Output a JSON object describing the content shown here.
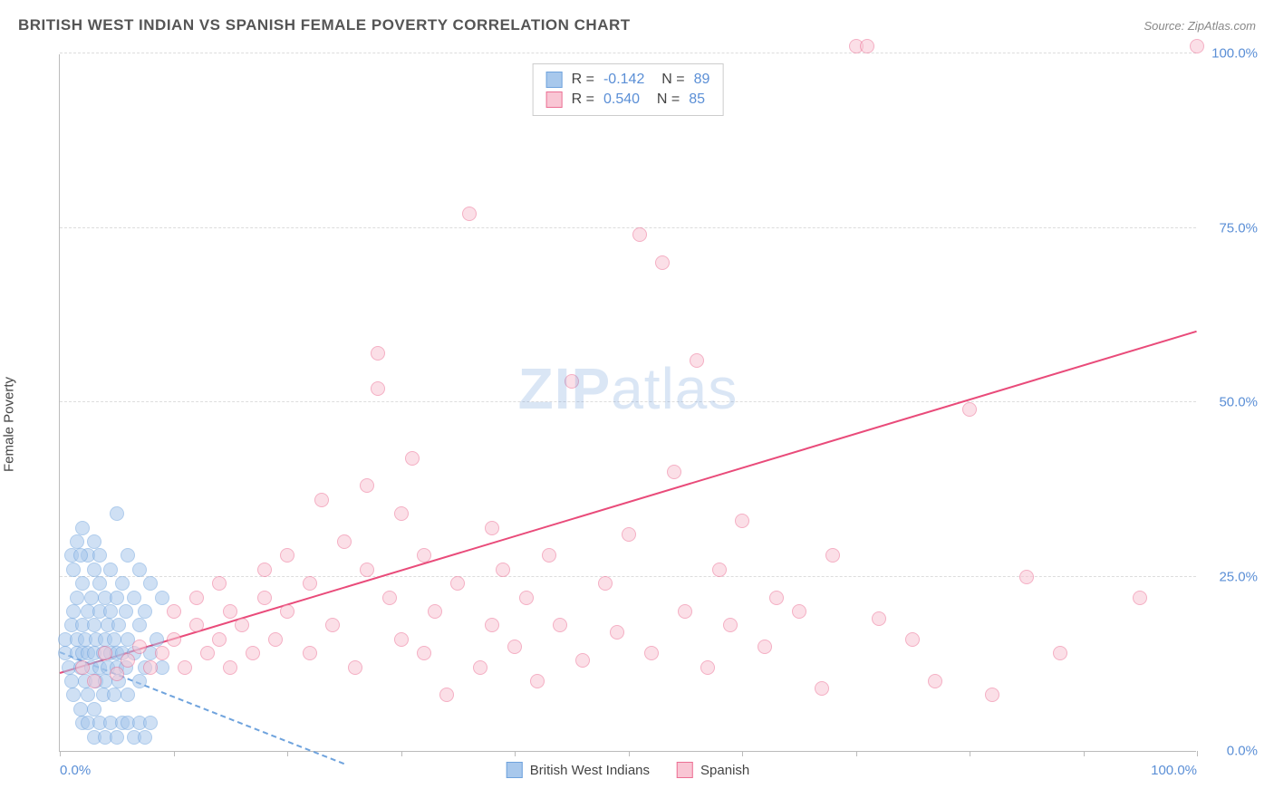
{
  "title": "BRITISH WEST INDIAN VS SPANISH FEMALE POVERTY CORRELATION CHART",
  "source": "Source: ZipAtlas.com",
  "y_axis_label": "Female Poverty",
  "watermark": {
    "zip": "ZIP",
    "atlas": "atlas"
  },
  "colors": {
    "blue_fill": "#a8c8ec",
    "blue_stroke": "#6fa3dd",
    "pink_fill": "#f9c6d4",
    "pink_stroke": "#ec6f94",
    "pink_line": "#e94b7a",
    "blue_line": "#6fa3dd",
    "grid": "#dddddd",
    "axis": "#bbbbbb",
    "tick_label": "#5b8fd6",
    "text": "#444444"
  },
  "chart": {
    "type": "scatter",
    "xlim": [
      0,
      100
    ],
    "ylim": [
      0,
      100
    ],
    "y_ticks": [
      0,
      25,
      50,
      75,
      100
    ],
    "y_tick_labels": [
      "0.0%",
      "25.0%",
      "50.0%",
      "75.0%",
      "100.0%"
    ],
    "x_ticks": [
      0,
      10,
      20,
      30,
      40,
      50,
      60,
      70,
      80,
      90,
      100
    ],
    "x_tick_labels_shown": {
      "0": "0.0%",
      "100": "100.0%"
    },
    "point_radius": 8,
    "point_opacity": 0.55,
    "series": [
      {
        "name": "British West Indians",
        "color_key": "blue",
        "R": "-0.142",
        "N": "89",
        "trend": {
          "x1": 0,
          "y1": 14,
          "x2": 25,
          "y2": -2,
          "dashed": true
        },
        "points": [
          [
            0.5,
            14
          ],
          [
            0.5,
            16
          ],
          [
            0.8,
            12
          ],
          [
            1,
            10
          ],
          [
            1,
            18
          ],
          [
            1.2,
            8
          ],
          [
            1.2,
            20
          ],
          [
            1.5,
            14
          ],
          [
            1.5,
            16
          ],
          [
            1.5,
            22
          ],
          [
            1.8,
            6
          ],
          [
            1.8,
            12
          ],
          [
            2,
            14
          ],
          [
            2,
            18
          ],
          [
            2,
            24
          ],
          [
            2.2,
            10
          ],
          [
            2.2,
            16
          ],
          [
            2.5,
            8
          ],
          [
            2.5,
            14
          ],
          [
            2.5,
            20
          ],
          [
            2.8,
            12
          ],
          [
            2.8,
            22
          ],
          [
            3,
            6
          ],
          [
            3,
            14
          ],
          [
            3,
            18
          ],
          [
            3,
            26
          ],
          [
            3.2,
            10
          ],
          [
            3.2,
            16
          ],
          [
            3.5,
            12
          ],
          [
            3.5,
            20
          ],
          [
            3.5,
            24
          ],
          [
            3.8,
            8
          ],
          [
            3.8,
            14
          ],
          [
            4,
            10
          ],
          [
            4,
            16
          ],
          [
            4,
            22
          ],
          [
            4.2,
            12
          ],
          [
            4.2,
            18
          ],
          [
            4.5,
            14
          ],
          [
            4.5,
            20
          ],
          [
            4.5,
            26
          ],
          [
            4.8,
            8
          ],
          [
            4.8,
            16
          ],
          [
            5,
            12
          ],
          [
            5,
            14
          ],
          [
            5,
            22
          ],
          [
            5.2,
            10
          ],
          [
            5.2,
            18
          ],
          [
            5.5,
            14
          ],
          [
            5.5,
            24
          ],
          [
            5.8,
            12
          ],
          [
            5.8,
            20
          ],
          [
            6,
            8
          ],
          [
            6,
            16
          ],
          [
            6,
            28
          ],
          [
            6.5,
            14
          ],
          [
            6.5,
            22
          ],
          [
            7,
            10
          ],
          [
            7,
            18
          ],
          [
            7,
            26
          ],
          [
            7.5,
            12
          ],
          [
            7.5,
            20
          ],
          [
            8,
            14
          ],
          [
            8,
            24
          ],
          [
            8.5,
            16
          ],
          [
            9,
            12
          ],
          [
            9,
            22
          ],
          [
            2,
            4
          ],
          [
            2.5,
            4
          ],
          [
            3,
            2
          ],
          [
            3.5,
            4
          ],
          [
            4,
            2
          ],
          [
            4.5,
            4
          ],
          [
            5,
            2
          ],
          [
            5.5,
            4
          ],
          [
            6,
            4
          ],
          [
            6.5,
            2
          ],
          [
            7,
            4
          ],
          [
            7.5,
            2
          ],
          [
            8,
            4
          ],
          [
            5,
            34
          ],
          [
            1,
            28
          ],
          [
            1.5,
            30
          ],
          [
            2,
            32
          ],
          [
            2.5,
            28
          ],
          [
            3,
            30
          ],
          [
            3.5,
            28
          ],
          [
            1.2,
            26
          ],
          [
            1.8,
            28
          ]
        ]
      },
      {
        "name": "Spanish",
        "color_key": "pink",
        "R": "0.540",
        "N": "85",
        "trend": {
          "x1": 0,
          "y1": 11,
          "x2": 100,
          "y2": 60,
          "dashed": false
        },
        "points": [
          [
            2,
            12
          ],
          [
            3,
            10
          ],
          [
            4,
            14
          ],
          [
            5,
            11
          ],
          [
            6,
            13
          ],
          [
            7,
            15
          ],
          [
            8,
            12
          ],
          [
            9,
            14
          ],
          [
            10,
            16
          ],
          [
            10,
            20
          ],
          [
            11,
            12
          ],
          [
            12,
            18
          ],
          [
            12,
            22
          ],
          [
            13,
            14
          ],
          [
            14,
            16
          ],
          [
            14,
            24
          ],
          [
            15,
            12
          ],
          [
            15,
            20
          ],
          [
            16,
            18
          ],
          [
            17,
            14
          ],
          [
            18,
            22
          ],
          [
            18,
            26
          ],
          [
            19,
            16
          ],
          [
            20,
            20
          ],
          [
            20,
            28
          ],
          [
            22,
            14
          ],
          [
            22,
            24
          ],
          [
            23,
            36
          ],
          [
            24,
            18
          ],
          [
            25,
            30
          ],
          [
            26,
            12
          ],
          [
            27,
            26
          ],
          [
            27,
            38
          ],
          [
            28,
            52
          ],
          [
            28,
            57
          ],
          [
            29,
            22
          ],
          [
            30,
            16
          ],
          [
            30,
            34
          ],
          [
            31,
            42
          ],
          [
            32,
            14
          ],
          [
            32,
            28
          ],
          [
            33,
            20
          ],
          [
            34,
            8
          ],
          [
            35,
            24
          ],
          [
            36,
            77
          ],
          [
            37,
            12
          ],
          [
            38,
            18
          ],
          [
            38,
            32
          ],
          [
            39,
            26
          ],
          [
            40,
            15
          ],
          [
            41,
            22
          ],
          [
            42,
            10
          ],
          [
            43,
            28
          ],
          [
            44,
            18
          ],
          [
            45,
            53
          ],
          [
            46,
            13
          ],
          [
            48,
            24
          ],
          [
            49,
            17
          ],
          [
            50,
            31
          ],
          [
            51,
            74
          ],
          [
            52,
            14
          ],
          [
            53,
            70
          ],
          [
            54,
            40
          ],
          [
            55,
            20
          ],
          [
            56,
            56
          ],
          [
            57,
            12
          ],
          [
            58,
            26
          ],
          [
            59,
            18
          ],
          [
            60,
            33
          ],
          [
            62,
            15
          ],
          [
            63,
            22
          ],
          [
            65,
            20
          ],
          [
            67,
            9
          ],
          [
            68,
            28
          ],
          [
            70,
            101
          ],
          [
            71,
            101
          ],
          [
            72,
            19
          ],
          [
            75,
            16
          ],
          [
            77,
            10
          ],
          [
            80,
            49
          ],
          [
            82,
            8
          ],
          [
            85,
            25
          ],
          [
            88,
            14
          ],
          [
            95,
            22
          ],
          [
            100,
            101
          ]
        ]
      }
    ]
  },
  "stats_box": {
    "rows": [
      {
        "swatch": "blue",
        "R": "-0.142",
        "N": "89"
      },
      {
        "swatch": "pink",
        "R": "0.540",
        "N": "85"
      }
    ]
  },
  "legend": [
    {
      "swatch": "blue",
      "label": "British West Indians"
    },
    {
      "swatch": "pink",
      "label": "Spanish"
    }
  ]
}
